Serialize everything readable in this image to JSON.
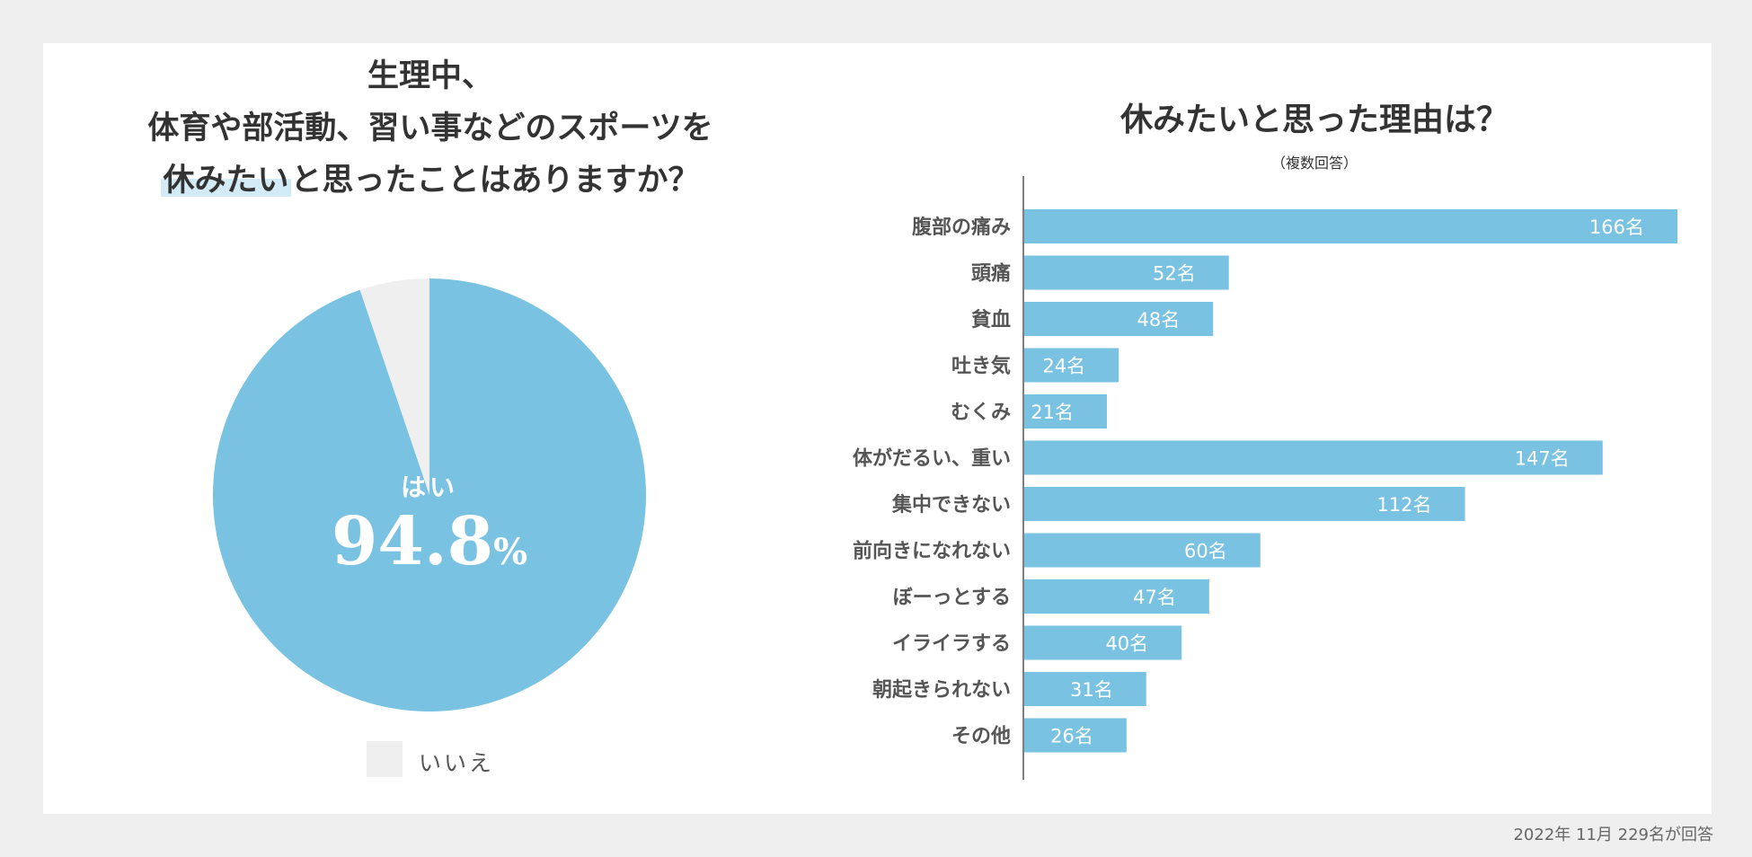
{
  "colors": {
    "background": "#efefef",
    "card": "#ffffff",
    "accent": "#79c2e2",
    "no_slice": "#efefef",
    "text": "#333333",
    "highlight": "#d3ebf6"
  },
  "pie": {
    "title_line1": "生理中、",
    "title_line2": "体育や部活動、習い事などのスポーツを",
    "title_line3_highlight": "休みたい",
    "title_line3_rest": "と思ったことはありますか？",
    "yes_label": "はい",
    "yes_value": "94.8",
    "yes_unit": "%",
    "legend_no_label": "いいえ"
  },
  "bar": {
    "title": "休みたいと思った理由は？",
    "subtitle": "（複数回答）"
  },
  "footnote": "2022年 11月  229名が回答",
  "chart_data": [
    {
      "type": "pie",
      "title": "生理中、体育や部活動、習い事などのスポーツを休みたいと思ったことはありますか？",
      "slices": [
        {
          "label": "はい",
          "value": 94.8
        },
        {
          "label": "いいえ",
          "value": 5.2
        }
      ],
      "unit": "%"
    },
    {
      "type": "bar",
      "orientation": "horizontal",
      "title": "休みたいと思った理由は？",
      "subtitle": "（複数回答）",
      "unit": "名",
      "categories": [
        "腹部の痛み",
        "頭痛",
        "貧血",
        "吐き気",
        "むくみ",
        "体がだるい、重い",
        "集中できない",
        "前向きになれない",
        "ぼーっとする",
        "イライラする",
        "朝起きられない",
        "その他"
      ],
      "values": [
        166,
        52,
        48,
        24,
        21,
        147,
        112,
        60,
        47,
        40,
        31,
        26
      ],
      "xlim": [
        0,
        166
      ]
    }
  ]
}
